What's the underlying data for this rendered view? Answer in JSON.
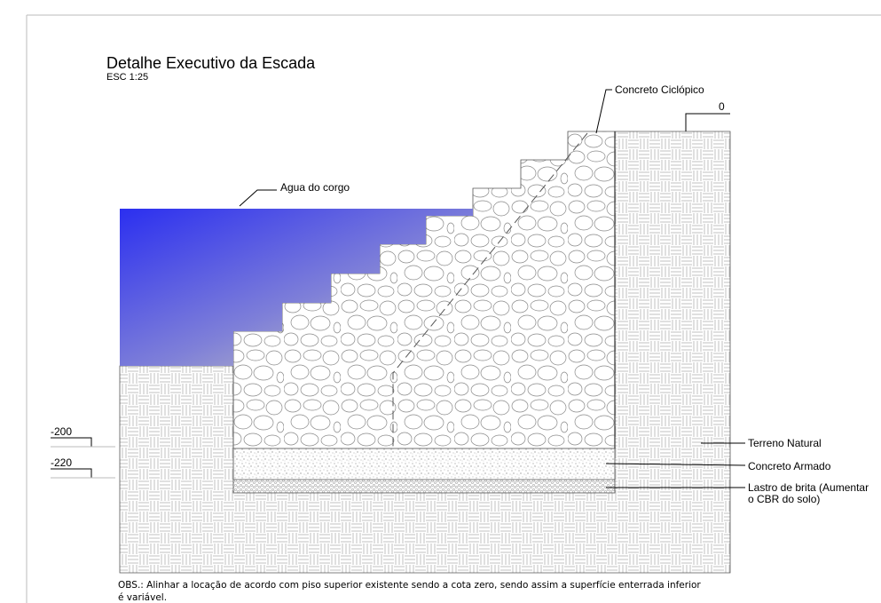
{
  "header": {
    "title": "Detalhe Executivo da Escada",
    "scale": "ESC 1:25"
  },
  "labels": {
    "concrete": "Concreto Ciclópico",
    "level_zero": "0",
    "water": "Agua do corgo",
    "level_200": "-200",
    "level_220": "-220",
    "terrain": "Terreno Natural",
    "reinforced": "Concreto Armado",
    "gravel": [
      "Lastro de brita (Aumentar",
      "o CBR do solo)"
    ]
  },
  "note": [
    "OBS.: Alinhar a locação de acordo com piso superior existente sendo a cota zero, sendo assim a superfície enterrada inferior",
    "é variável."
  ]
}
